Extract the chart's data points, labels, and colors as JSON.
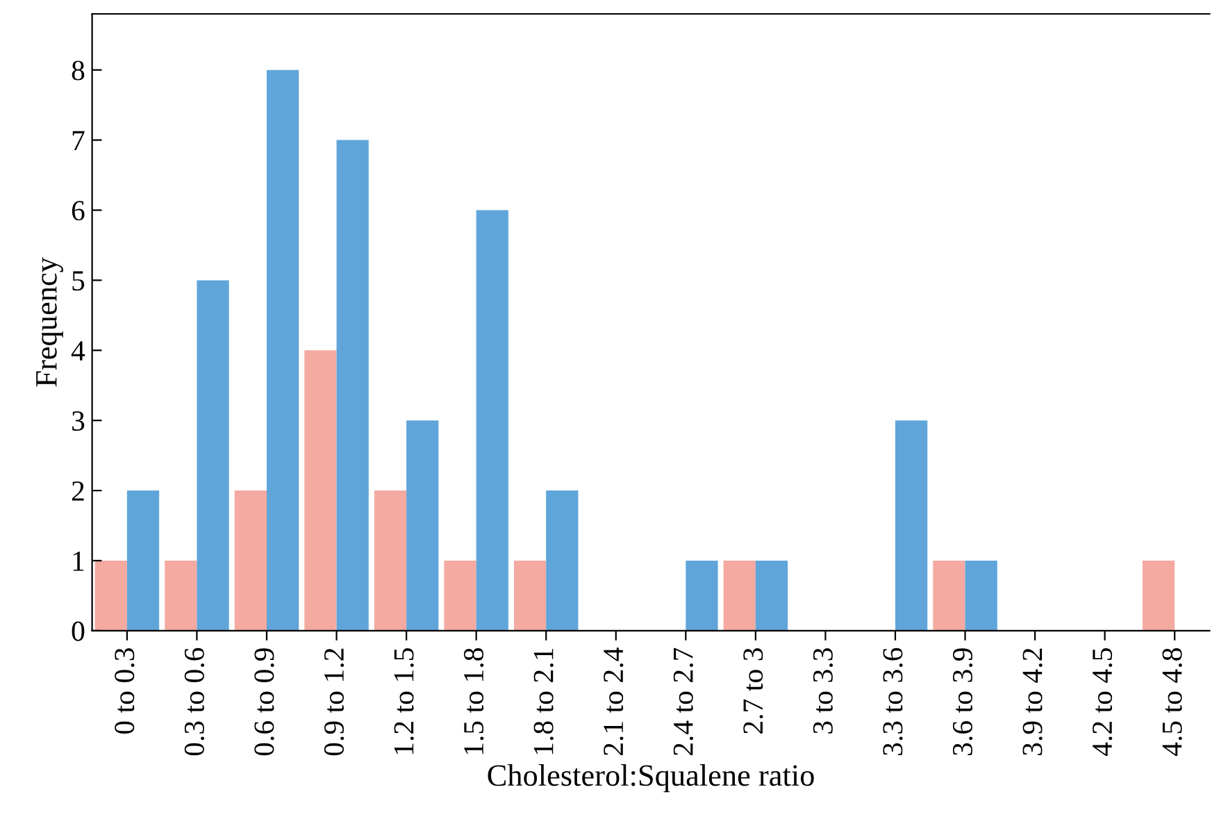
{
  "chart_data": {
    "type": "bar",
    "xlabel": "Cholesterol:Squalene ratio",
    "ylabel": "Frequency",
    "categories": [
      "0 to 0.3",
      "0.3 to 0.6",
      "0.6 to 0.9",
      "0.9 to 1.2",
      "1.2 to 1.5",
      "1.5 to 1.8",
      "1.8 to 2.1",
      "2.1 to 2.4",
      "2.4 to 2.7",
      "2.7 to 3",
      "3 to 3.3",
      "3.3 to 3.6",
      "3.6 to 3.9",
      "3.9 to 4.2",
      "4.2 to 4.5",
      "4.5 to 4.8"
    ],
    "series": [
      {
        "color": "#f4aaa0",
        "values": [
          1,
          1,
          2,
          4,
          2,
          1,
          1,
          0,
          0,
          1,
          0,
          0,
          1,
          0,
          0,
          1
        ]
      },
      {
        "color": "#5fa5da",
        "values": [
          2,
          5,
          8,
          7,
          3,
          6,
          2,
          0,
          1,
          1,
          0,
          3,
          1,
          0,
          0,
          0
        ]
      }
    ],
    "ylim": [
      0,
      8.8
    ],
    "yticks": [
      0,
      1,
      2,
      3,
      4,
      5,
      6,
      7,
      8
    ],
    "grid": false,
    "legend": false
  }
}
